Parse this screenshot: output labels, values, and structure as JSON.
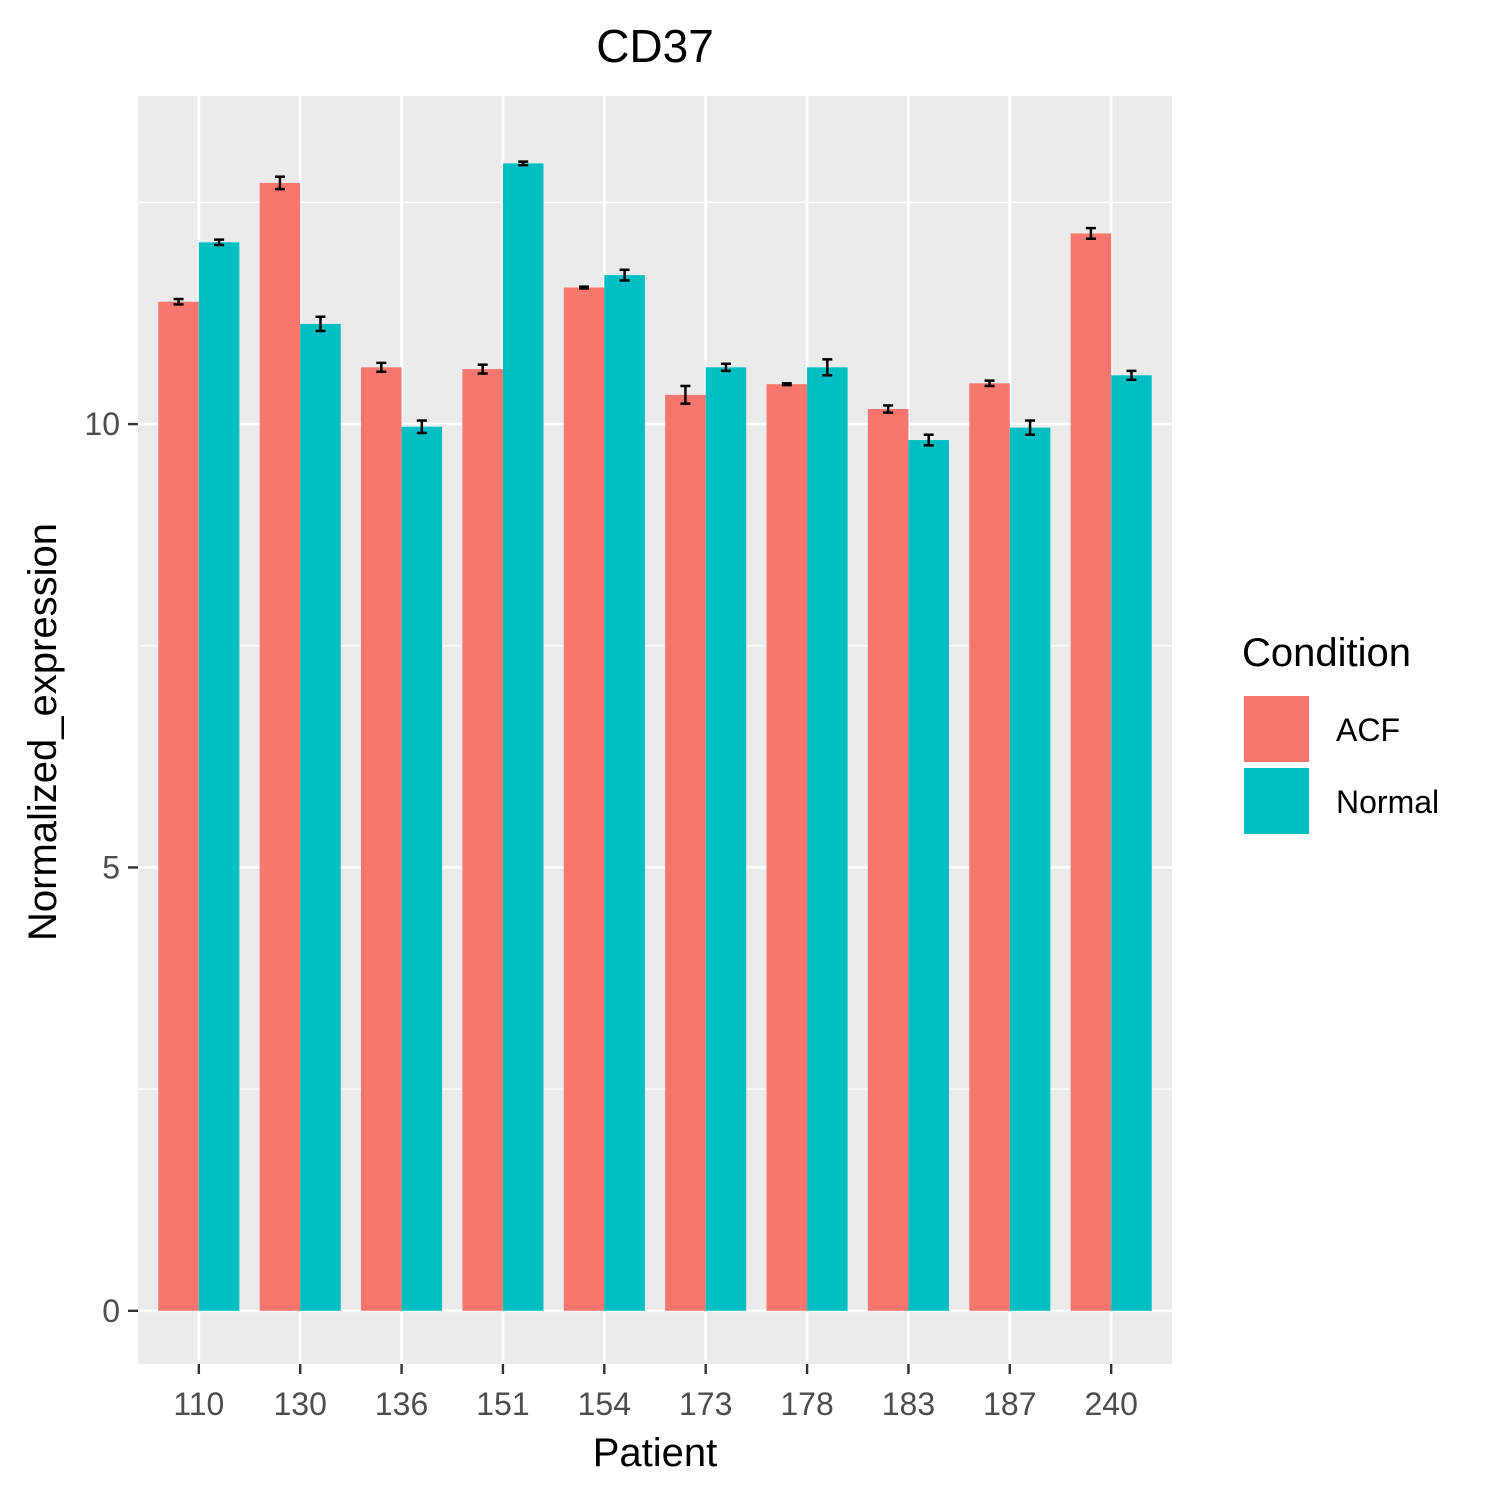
{
  "chart_data": {
    "type": "bar",
    "title": "CD37",
    "xlabel": "Patient",
    "ylabel": "Normalized_expression",
    "categories": [
      "110",
      "130",
      "136",
      "151",
      "154",
      "173",
      "178",
      "183",
      "187",
      "240"
    ],
    "series": [
      {
        "name": "ACF",
        "color": "#F8766D",
        "values": [
          11.38,
          12.72,
          10.64,
          10.62,
          11.54,
          10.33,
          10.45,
          10.17,
          10.46,
          12.15
        ],
        "errors": [
          0.03,
          0.07,
          0.05,
          0.05,
          0.01,
          0.1,
          0.01,
          0.04,
          0.03,
          0.06
        ]
      },
      {
        "name": "Normal",
        "color": "#00BFC4",
        "values": [
          12.05,
          11.13,
          9.97,
          12.94,
          11.68,
          10.64,
          10.64,
          9.82,
          9.96,
          10.55
        ],
        "errors": [
          0.03,
          0.08,
          0.07,
          0.02,
          0.06,
          0.04,
          0.09,
          0.06,
          0.08,
          0.05
        ]
      }
    ],
    "yticks": [
      0,
      5,
      10
    ],
    "ylim": [
      -0.6,
      13.7
    ],
    "grid": true,
    "panel_background": "#EBEBEB",
    "legend_title": "Condition",
    "legend_position": "right"
  }
}
